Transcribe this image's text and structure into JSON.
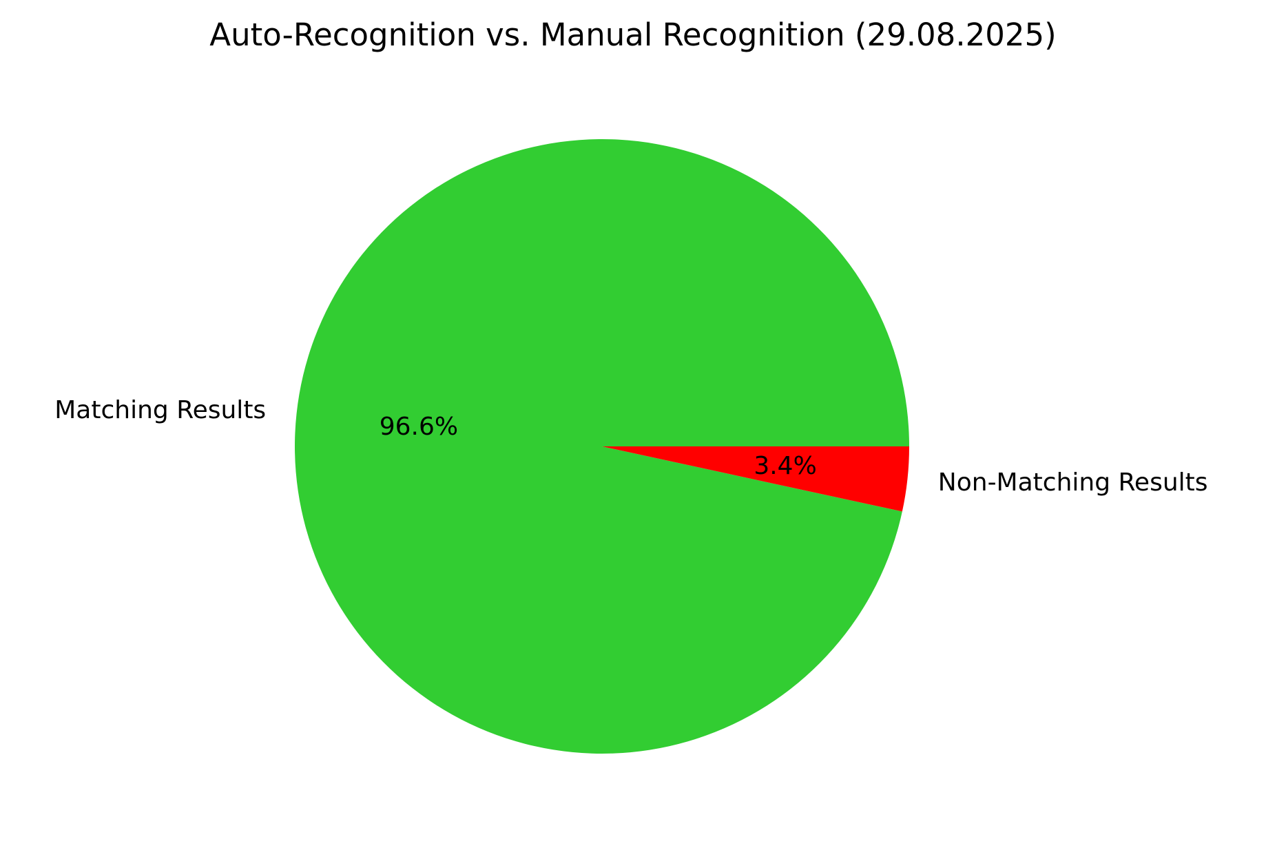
{
  "chart_data": {
    "type": "pie",
    "title": "Auto-Recognition vs. Manual Recognition (29.08.2025)",
    "categories": [
      "Matching Results",
      "Non-Matching Results"
    ],
    "values": [
      96.6,
      3.4
    ],
    "labels": [
      "96.6%",
      "3.4%"
    ],
    "colors": [
      "#32cd32",
      "#ff0000"
    ],
    "start_angle_deg": 0,
    "direction": "counterclockwise",
    "legend": "none"
  }
}
